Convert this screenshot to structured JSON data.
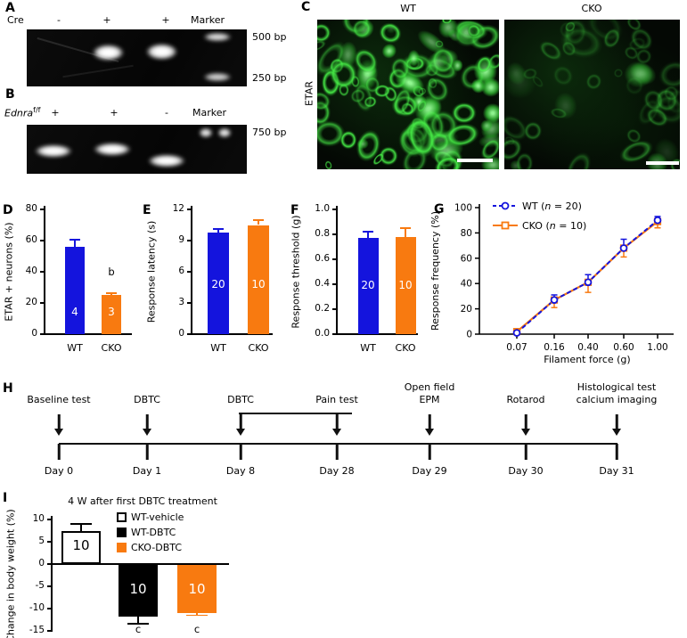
{
  "colors": {
    "blue": "#1414dd",
    "orange": "#f87a10",
    "black": "#000000",
    "white": "#ffffff",
    "green": "#2fd42f"
  },
  "panel_a": {
    "label": "A",
    "row_label": "Cre",
    "lanes": [
      "-",
      "+",
      "+",
      "Marker"
    ],
    "size_labels": [
      "500 bp",
      "250 bp"
    ]
  },
  "panel_b": {
    "label": "B",
    "row_label_base": "Ednra",
    "row_label_sup": "f/f",
    "lanes": [
      "+",
      "+",
      "-",
      "Marker"
    ],
    "size_labels": [
      "750 bp"
    ]
  },
  "panel_c": {
    "label": "C",
    "columns": [
      "WT",
      "CKO"
    ],
    "stain_label": "ETAR"
  },
  "panel_h": {
    "label": "H",
    "events": [
      {
        "line1": "",
        "line2": "Baseline test",
        "day": "Day 0"
      },
      {
        "line1": "",
        "line2": "DBTC",
        "day": "Day 1"
      },
      {
        "line1": "",
        "line2": "DBTC",
        "day": "Day 8"
      },
      {
        "line1": "",
        "line2": "Pain test",
        "day": "Day 28"
      },
      {
        "line1": "Open field",
        "line2": "EPM",
        "day": "Day 29"
      },
      {
        "line1": "",
        "line2": "Rotarod",
        "day": "Day 30"
      },
      {
        "line1": "Histological test",
        "line2": "calcium imaging",
        "day": "Day 31"
      }
    ]
  },
  "chart_data": [
    {
      "id": "D",
      "panel_label": "D",
      "type": "bar",
      "ylabel": "ETAR + neurons (%)",
      "ylim": [
        0,
        80
      ],
      "yticks": [
        "0",
        "20",
        "40",
        "60",
        "80"
      ],
      "categories": [
        "WT",
        "CKO"
      ],
      "values": [
        56,
        25
      ],
      "errors": [
        4.5,
        1.5
      ],
      "bar_labels": [
        "4",
        "3"
      ],
      "bar_colors": [
        "blue",
        "orange"
      ],
      "annotations": [
        {
          "text": "b",
          "category": "CKO"
        }
      ]
    },
    {
      "id": "E",
      "panel_label": "E",
      "type": "bar",
      "ylabel": "Response latency (s)",
      "ylim": [
        0,
        12
      ],
      "yticks": [
        "0",
        "3",
        "6",
        "9",
        "12"
      ],
      "categories": [
        "WT",
        "CKO"
      ],
      "values": [
        9.8,
        10.5
      ],
      "errors": [
        0.3,
        0.5
      ],
      "bar_labels": [
        "20",
        "10"
      ],
      "bar_colors": [
        "blue",
        "orange"
      ]
    },
    {
      "id": "F",
      "panel_label": "F",
      "type": "bar",
      "ylabel": "Response threshold (g)",
      "ylim": [
        0,
        1.0
      ],
      "yticks": [
        "0.0",
        "0.2",
        "0.4",
        "0.6",
        "0.8",
        "1.0"
      ],
      "categories": [
        "WT",
        "CKO"
      ],
      "values": [
        0.77,
        0.78
      ],
      "errors": [
        0.05,
        0.07
      ],
      "bar_labels": [
        "20",
        "10"
      ],
      "bar_colors": [
        "blue",
        "orange"
      ]
    },
    {
      "id": "G",
      "panel_label": "G",
      "type": "line",
      "ylabel": "Response frequency (%)",
      "xlabel": "Filament force (g)",
      "ylim": [
        0,
        100
      ],
      "yticks": [
        "0",
        "20",
        "40",
        "60",
        "80",
        "100"
      ],
      "x_values": [
        0.07,
        0.16,
        0.4,
        0.6,
        1.0
      ],
      "x_categories": [
        "0.07",
        "0.16",
        "0.40",
        "0.60",
        "1.00"
      ],
      "legend_position": "top-left",
      "series": [
        {
          "name_pre": "WT (",
          "name_var": "n",
          "name_post": " = 20)",
          "color": "blue",
          "marker": "circle",
          "dash": true,
          "values": [
            1,
            27,
            41,
            68,
            90
          ],
          "errors": [
            2,
            4,
            6,
            7,
            3
          ],
          "error_dir": "up"
        },
        {
          "name_pre": "CKO (",
          "name_var": "n",
          "name_post": " = 10)",
          "color": "orange",
          "marker": "square",
          "dash": false,
          "values": [
            2,
            27,
            41,
            68,
            89
          ],
          "errors": [
            2,
            6,
            8,
            7,
            5
          ],
          "error_dir": "down"
        }
      ]
    },
    {
      "id": "I",
      "panel_label": "I",
      "type": "bar",
      "title": "4 W after first DBTC treatment",
      "ylabel": "Change in body weight (%)",
      "ylim": [
        -15,
        10
      ],
      "yticks": [
        "10",
        "5",
        "0",
        "-5",
        "-10",
        "-15"
      ],
      "categories": [
        "WT-vehicle",
        "WT-DBTC",
        "CKO-DBTC"
      ],
      "values": [
        7.5,
        -11.5,
        -10.8
      ],
      "errors": [
        1.5,
        1.9,
        0.7
      ],
      "bar_labels": [
        "10",
        "10",
        "10"
      ],
      "bar_colors": [
        "white",
        "black",
        "orange"
      ],
      "sig_labels": [
        "",
        "c",
        "c"
      ],
      "legend": [
        {
          "label": "WT-vehicle",
          "fill": "white"
        },
        {
          "label": "WT-DBTC",
          "fill": "black"
        },
        {
          "label": "CKO-DBTC",
          "fill": "orange"
        }
      ]
    }
  ]
}
